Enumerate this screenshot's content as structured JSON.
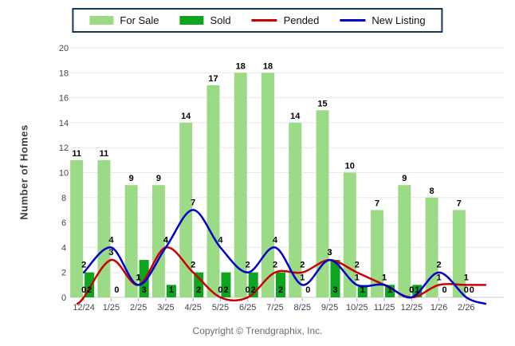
{
  "legend": {
    "items": [
      {
        "label": "For Sale",
        "swatch": "bar",
        "color": "#9cdb85"
      },
      {
        "label": "Sold",
        "swatch": "bar",
        "color": "#0ca51e"
      },
      {
        "label": "Pended",
        "swatch": "line",
        "color": "#cc0000"
      },
      {
        "label": "New Listing",
        "swatch": "line",
        "color": "#0000cc"
      }
    ]
  },
  "chart_data": {
    "type": "bar+line",
    "title": "",
    "xlabel": "",
    "ylabel": "Number of Homes",
    "ylim": [
      0,
      20
    ],
    "ytick_step": 2,
    "grid": true,
    "legend_position": "top",
    "categories": [
      "12/24",
      "1/25",
      "2/25",
      "3/25",
      "4/25",
      "5/25",
      "6/25",
      "7/25",
      "8/25",
      "9/25",
      "10/25",
      "11/25",
      "12/25",
      "1/26",
      "2/26"
    ],
    "series": [
      {
        "name": "For Sale",
        "type": "bar",
        "color": "#9cdb85",
        "label_position": "above",
        "values": [
          11,
          11,
          9,
          9,
          14,
          17,
          18,
          18,
          14,
          15,
          10,
          7,
          9,
          8,
          7
        ]
      },
      {
        "name": "Sold",
        "type": "bar",
        "color": "#0ca51e",
        "label_position": "base",
        "values": [
          2,
          0,
          3,
          1,
          2,
          2,
          2,
          2,
          0,
          3,
          1,
          1,
          1,
          0,
          0
        ]
      },
      {
        "name": "Pended",
        "type": "line",
        "color": "#cc0000",
        "values": [
          0,
          3,
          1,
          4,
          2,
          0,
          0,
          2,
          2,
          3,
          2,
          1,
          0,
          1,
          1
        ]
      },
      {
        "name": "New Listing",
        "type": "line",
        "color": "#0000cc",
        "values": [
          2,
          4,
          1,
          4,
          7,
          4,
          2,
          4,
          1,
          3,
          1,
          1,
          0,
          2,
          0
        ]
      }
    ]
  },
  "y_axis": {
    "title": "Number of Homes",
    "ticks": [
      0,
      2,
      4,
      6,
      8,
      10,
      12,
      14,
      16,
      18,
      20
    ]
  },
  "footer": {
    "copyright": "Copyright © Trendgraphix, Inc."
  },
  "colors": {
    "background": "#ffffff",
    "gridline": "#e8e8e8",
    "axis_line": "#c8c8c8",
    "tick_mark": "#9fb0c8",
    "tick_label": "#44445a",
    "data_label": "#000000",
    "legend_border": "#17375e"
  }
}
